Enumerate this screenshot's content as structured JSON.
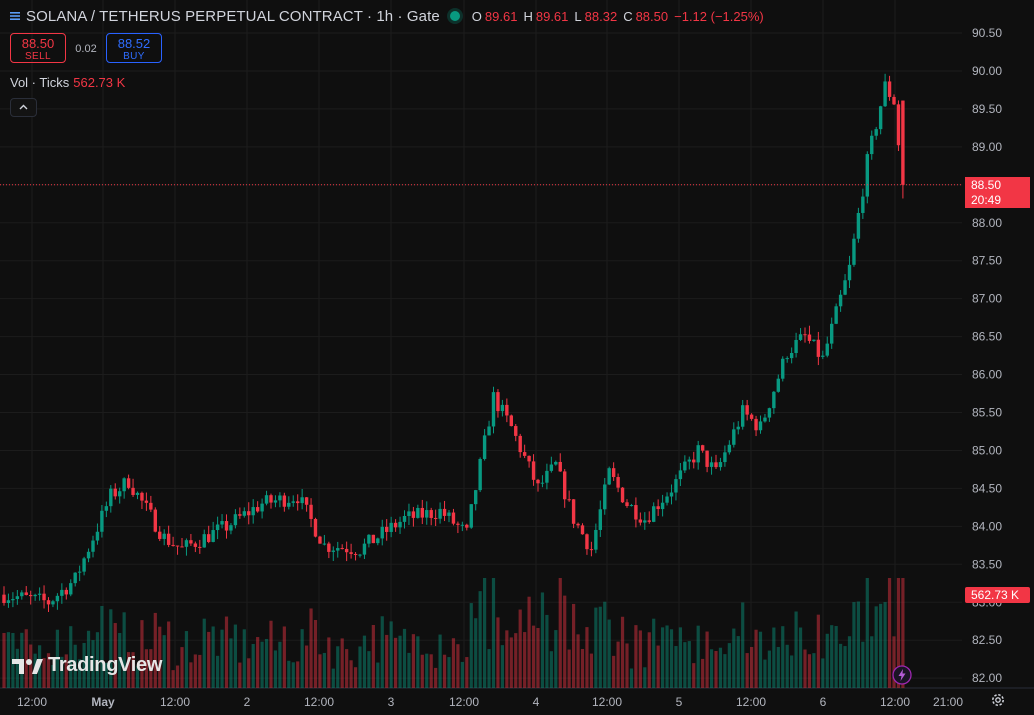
{
  "header": {
    "title": "SOLANA / TETHERUS PERPETUAL CONTRACT · 1h · Gate",
    "ohlc": [
      {
        "k": "O",
        "v": "89.61"
      },
      {
        "k": "H",
        "v": "89.61"
      },
      {
        "k": "L",
        "v": "88.32"
      },
      {
        "k": "C",
        "v": "88.50"
      }
    ],
    "change": "−1.12 (−1.25%)"
  },
  "trade": {
    "sell_price": "88.50",
    "sell_label": "SELL",
    "spread": "0.02",
    "buy_price": "88.52",
    "buy_label": "BUY"
  },
  "volume": {
    "label": "Vol · Ticks",
    "value": "562.73 K",
    "tag": "562.73 K"
  },
  "price_tag": {
    "price": "88.50",
    "countdown": "20:49"
  },
  "logo": {
    "text": "TradingView"
  },
  "colors": {
    "up": "#089981",
    "down": "#f23645",
    "background": "#0f0f0f",
    "grid": "#1c1c1c"
  },
  "chart_data": {
    "type": "candlestick",
    "ylim": [
      81.9,
      90.6
    ],
    "y_ticks": [
      "90.50",
      "90.00",
      "89.50",
      "89.00",
      "88.50",
      "88.00",
      "87.50",
      "87.00",
      "86.50",
      "86.00",
      "85.50",
      "85.00",
      "84.50",
      "84.00",
      "83.50",
      "83.00",
      "82.50",
      "82.00"
    ],
    "x_ticks": [
      "12:00",
      "May",
      "12:00",
      "2",
      "12:00",
      "3",
      "12:00",
      "4",
      "12:00",
      "5",
      "12:00",
      "6",
      "12:00",
      "21:00"
    ],
    "last_price": 88.5,
    "waypoints": [
      [
        0,
        83.1
      ],
      [
        10,
        83.0
      ],
      [
        16,
        83.3
      ],
      [
        24,
        84.4
      ],
      [
        28,
        84.6
      ],
      [
        36,
        83.85
      ],
      [
        40,
        83.7
      ],
      [
        50,
        84.0
      ],
      [
        58,
        84.3
      ],
      [
        66,
        84.4
      ],
      [
        72,
        83.75
      ],
      [
        80,
        83.7
      ],
      [
        90,
        84.1
      ],
      [
        98,
        84.2
      ],
      [
        104,
        83.9
      ],
      [
        110,
        85.7
      ],
      [
        114,
        85.3
      ],
      [
        120,
        84.5
      ],
      [
        124,
        84.8
      ],
      [
        128,
        84.1
      ],
      [
        132,
        83.7
      ],
      [
        136,
        84.7
      ],
      [
        140,
        84.3
      ],
      [
        144,
        84.1
      ],
      [
        150,
        84.5
      ],
      [
        156,
        85.0
      ],
      [
        160,
        84.7
      ],
      [
        166,
        85.5
      ],
      [
        170,
        85.3
      ],
      [
        176,
        86.3
      ],
      [
        180,
        86.5
      ],
      [
        184,
        86.2
      ],
      [
        190,
        87.4
      ],
      [
        194,
        88.8
      ],
      [
        198,
        89.8
      ],
      [
        200,
        89.6
      ],
      [
        202,
        88.5
      ]
    ],
    "volume_max": 1000
  }
}
